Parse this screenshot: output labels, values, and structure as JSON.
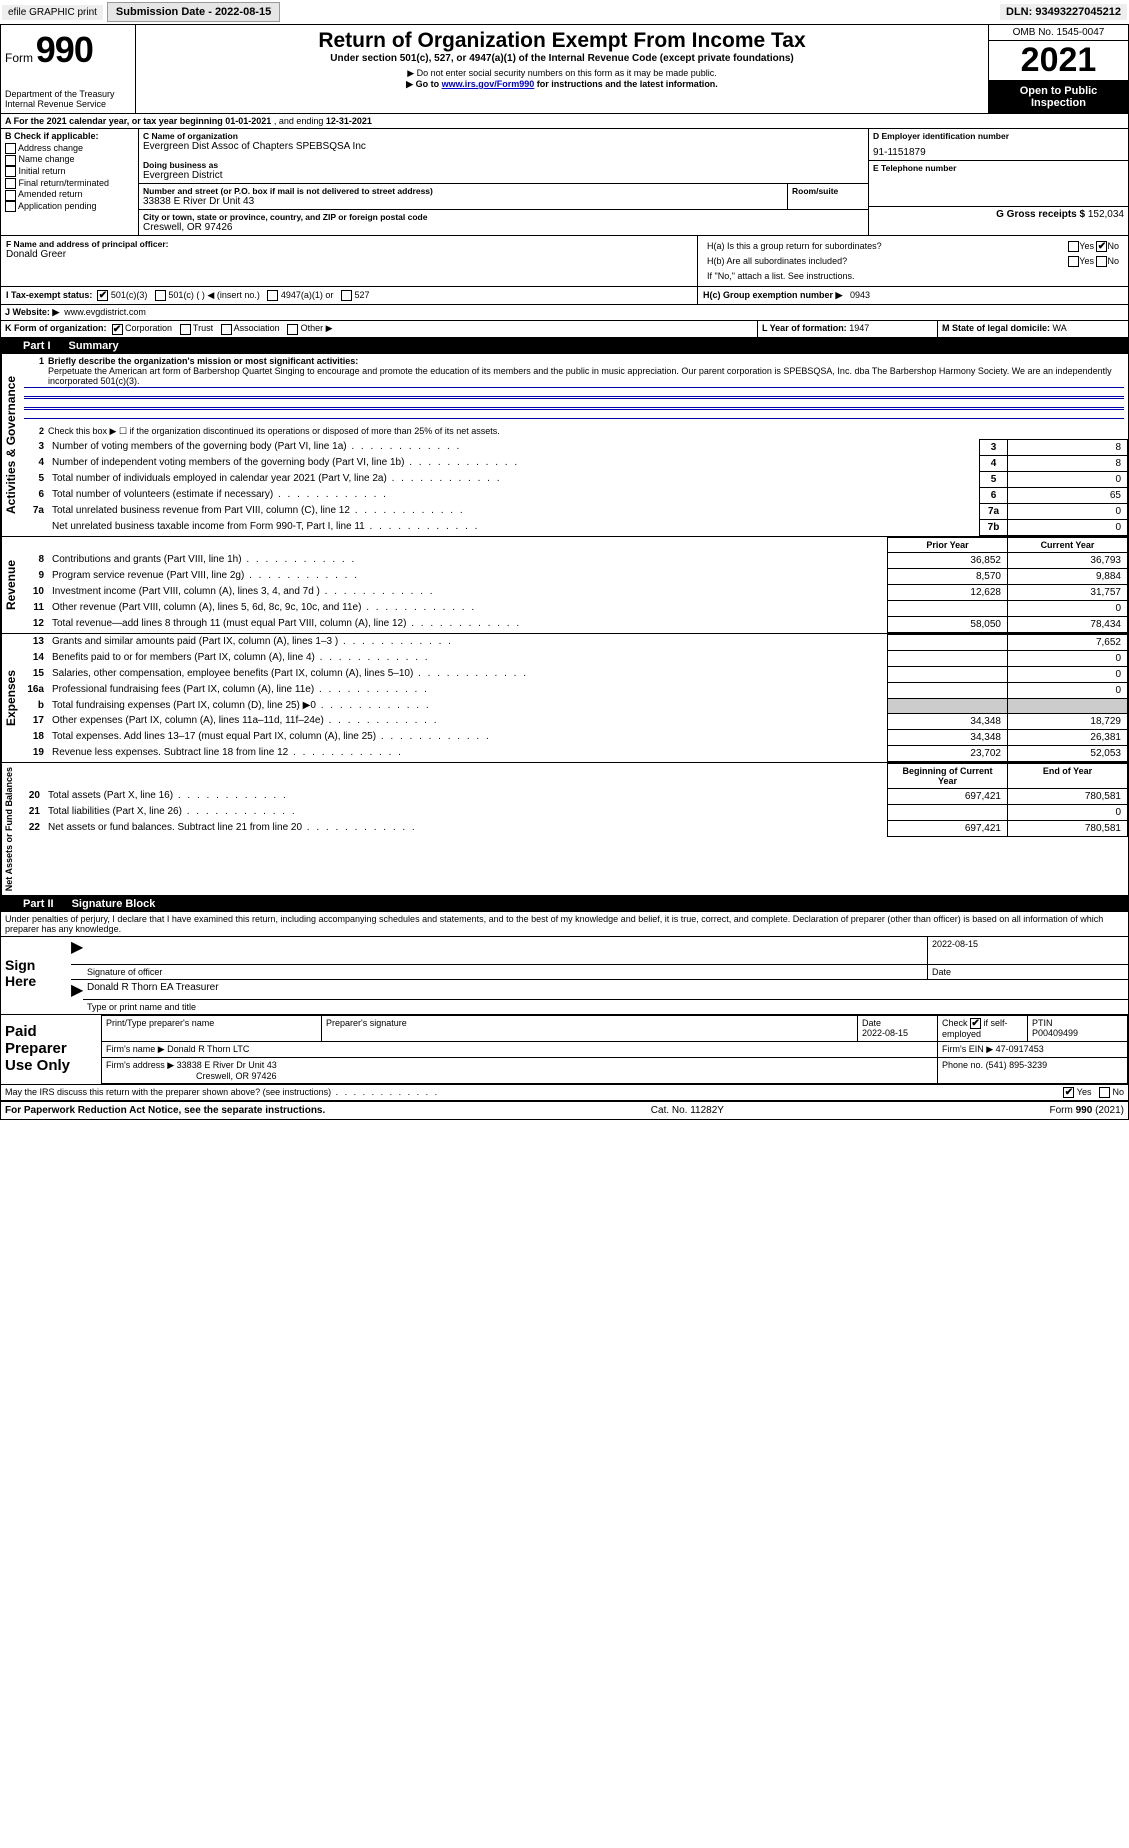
{
  "topbar": {
    "efile_label": "efile GRAPHIC print",
    "submission_label": "Submission Date - 2022-08-15",
    "dln_label": "DLN: 93493227045212"
  },
  "header": {
    "form_word": "Form",
    "form_num": "990",
    "dept": "Department of the Treasury",
    "irs": "Internal Revenue Service",
    "title": "Return of Organization Exempt From Income Tax",
    "subtitle": "Under section 501(c), 527, or 4947(a)(1) of the Internal Revenue Code (except private foundations)",
    "note1": "▶ Do not enter social security numbers on this form as it may be made public.",
    "note2_pre": "▶ Go to ",
    "note2_link": "www.irs.gov/Form990",
    "note2_post": " for instructions and the latest information.",
    "omb": "OMB No. 1545-0047",
    "year": "2021",
    "open": "Open to Public Inspection"
  },
  "lineA": {
    "text_pre": "A For the 2021 calendar year, or tax year beginning ",
    "begin": "01-01-2021",
    "mid": "   , and ending ",
    "end": "12-31-2021"
  },
  "boxB": {
    "heading": "B Check if applicable:",
    "items": [
      "Address change",
      "Name change",
      "Initial return",
      "Final return/terminated",
      "Amended return",
      "Application pending"
    ]
  },
  "boxC": {
    "name_lbl": "C Name of organization",
    "name": "Evergreen Dist Assoc of Chapters SPEBSQSA Inc",
    "dba_lbl": "Doing business as",
    "dba": "Evergreen District",
    "addr_lbl": "Number and street (or P.O. box if mail is not delivered to street address)",
    "room_lbl": "Room/suite",
    "addr": "33838 E River Dr Unit 43",
    "city_lbl": "City or town, state or province, country, and ZIP or foreign postal code",
    "city": "Creswell, OR  97426"
  },
  "boxD": {
    "lbl": "D Employer identification number",
    "val": "91-1151879"
  },
  "boxE": {
    "lbl": "E Telephone number",
    "val": ""
  },
  "boxG": {
    "lbl": "G Gross receipts $",
    "val": "152,034"
  },
  "boxF": {
    "lbl": "F  Name and address of principal officer:",
    "val": "Donald Greer"
  },
  "boxH": {
    "a_lbl": "H(a)  Is this a group return for subordinates?",
    "a_yes": "Yes",
    "a_no": "No",
    "b_lbl": "H(b)  Are all subordinates included?",
    "b_yes": "Yes",
    "b_no": "No",
    "b_note": "If \"No,\" attach a list. See instructions.",
    "c_lbl": "H(c)  Group exemption number ▶",
    "c_val": "0943"
  },
  "boxI": {
    "lbl": "I    Tax-exempt status:",
    "opts": [
      "501(c)(3)",
      "501(c) (  ) ◀ (insert no.)",
      "4947(a)(1) or",
      "527"
    ]
  },
  "boxJ": {
    "lbl": "J   Website: ▶",
    "val": "www.evgdistrict.com"
  },
  "boxK": {
    "lbl": "K Form of organization:",
    "opts": [
      "Corporation",
      "Trust",
      "Association",
      "Other ▶"
    ]
  },
  "boxL": {
    "lbl": "L Year of formation:",
    "val": "1947"
  },
  "boxM": {
    "lbl": "M State of legal domicile:",
    "val": "WA"
  },
  "part1": {
    "tab": "Part I",
    "title": "Summary"
  },
  "gov": {
    "side": "Activities & Governance",
    "l1_lbl": "Briefly describe the organization's mission or most significant activities:",
    "l1_text": "Perpetuate the American art form of Barbershop Quartet Singing to encourage and promote the education of its members and the public in music appreciation. Our parent corporation is SPEBSQSA, Inc. dba The Barbershop Harmony Society. We are an independently incorporated 501(c)(3).",
    "l2": "Check this box ▶ ☐  if the organization discontinued its operations or disposed of more than 25% of its net assets.",
    "rows": [
      {
        "n": "3",
        "t": "Number of voting members of the governing body (Part VI, line 1a)",
        "b": "3",
        "v": "8"
      },
      {
        "n": "4",
        "t": "Number of independent voting members of the governing body (Part VI, line 1b)",
        "b": "4",
        "v": "8"
      },
      {
        "n": "5",
        "t": "Total number of individuals employed in calendar year 2021 (Part V, line 2a)",
        "b": "5",
        "v": "0"
      },
      {
        "n": "6",
        "t": "Total number of volunteers (estimate if necessary)",
        "b": "6",
        "v": "65"
      },
      {
        "n": "7a",
        "t": "Total unrelated business revenue from Part VIII, column (C), line 12",
        "b": "7a",
        "v": "0"
      },
      {
        "n": "",
        "t": "Net unrelated business taxable income from Form 990-T, Part I, line 11",
        "b": "7b",
        "v": "0"
      }
    ]
  },
  "rev": {
    "side": "Revenue",
    "hdr_prior": "Prior Year",
    "hdr_curr": "Current Year",
    "rows": [
      {
        "n": "8",
        "t": "Contributions and grants (Part VIII, line 1h)",
        "p": "36,852",
        "c": "36,793"
      },
      {
        "n": "9",
        "t": "Program service revenue (Part VIII, line 2g)",
        "p": "8,570",
        "c": "9,884"
      },
      {
        "n": "10",
        "t": "Investment income (Part VIII, column (A), lines 3, 4, and 7d )",
        "p": "12,628",
        "c": "31,757"
      },
      {
        "n": "11",
        "t": "Other revenue (Part VIII, column (A), lines 5, 6d, 8c, 9c, 10c, and 11e)",
        "p": "",
        "c": "0"
      },
      {
        "n": "12",
        "t": "Total revenue—add lines 8 through 11 (must equal Part VIII, column (A), line 12)",
        "p": "58,050",
        "c": "78,434"
      }
    ]
  },
  "exp": {
    "side": "Expenses",
    "rows": [
      {
        "n": "13",
        "t": "Grants and similar amounts paid (Part IX, column (A), lines 1–3 )",
        "p": "",
        "c": "7,652"
      },
      {
        "n": "14",
        "t": "Benefits paid to or for members (Part IX, column (A), line 4)",
        "p": "",
        "c": "0"
      },
      {
        "n": "15",
        "t": "Salaries, other compensation, employee benefits (Part IX, column (A), lines 5–10)",
        "p": "",
        "c": "0"
      },
      {
        "n": "16a",
        "t": "Professional fundraising fees (Part IX, column (A), line 11e)",
        "p": "",
        "c": "0"
      },
      {
        "n": "b",
        "t": "Total fundraising expenses (Part IX, column (D), line 25) ▶0",
        "p": "GRAY",
        "c": "GRAY"
      },
      {
        "n": "17",
        "t": "Other expenses (Part IX, column (A), lines 11a–11d, 11f–24e)",
        "p": "34,348",
        "c": "18,729"
      },
      {
        "n": "18",
        "t": "Total expenses. Add lines 13–17 (must equal Part IX, column (A), line 25)",
        "p": "34,348",
        "c": "26,381"
      },
      {
        "n": "19",
        "t": "Revenue less expenses. Subtract line 18 from line 12",
        "p": "23,702",
        "c": "52,053"
      }
    ]
  },
  "net": {
    "side": "Net Assets or Fund Balances",
    "hdr_beg": "Beginning of Current Year",
    "hdr_end": "End of Year",
    "rows": [
      {
        "n": "20",
        "t": "Total assets (Part X, line 16)",
        "p": "697,421",
        "c": "780,581"
      },
      {
        "n": "21",
        "t": "Total liabilities (Part X, line 26)",
        "p": "",
        "c": "0"
      },
      {
        "n": "22",
        "t": "Net assets or fund balances. Subtract line 21 from line 20",
        "p": "697,421",
        "c": "780,581"
      }
    ]
  },
  "part2": {
    "tab": "Part II",
    "title": "Signature Block"
  },
  "penalty": "Under penalties of perjury, I declare that I have examined this return, including accompanying schedules and statements, and to the best of my knowledge and belief, it is true, correct, and complete. Declaration of preparer (other than officer) is based on all information of which preparer has any knowledge.",
  "sign": {
    "here": "Sign Here",
    "sig_lbl": "Signature of officer",
    "date_lbl": "Date",
    "date_val": "2022-08-15",
    "name_val": "Donald R Thorn EA Treasurer",
    "name_lbl": "Type or print name and title"
  },
  "prep": {
    "side": "Paid Preparer Use Only",
    "h1": "Print/Type preparer's name",
    "h2": "Preparer's signature",
    "h3_l": "Date",
    "h3": "2022-08-15",
    "h4_l": "Check",
    "h4_v": "if self-employed",
    "h5_l": "PTIN",
    "h5": "P00409499",
    "firm_name_l": "Firm's name    ▶",
    "firm_name": "Donald R Thorn LTC",
    "firm_ein_l": "Firm's EIN ▶",
    "firm_ein": "47-0917453",
    "firm_addr_l": "Firm's address ▶",
    "firm_addr1": "33838 E River Dr Unit 43",
    "firm_addr2": "Creswell, OR  97426",
    "phone_l": "Phone no.",
    "phone": "(541) 895-3239"
  },
  "discuss": {
    "q": "May the IRS discuss this return with the preparer shown above? (see instructions)",
    "yes": "Yes",
    "no": "No"
  },
  "footer": {
    "left": "For Paperwork Reduction Act Notice, see the separate instructions.",
    "mid": "Cat. No. 11282Y",
    "right": "Form 990 (2021)"
  }
}
